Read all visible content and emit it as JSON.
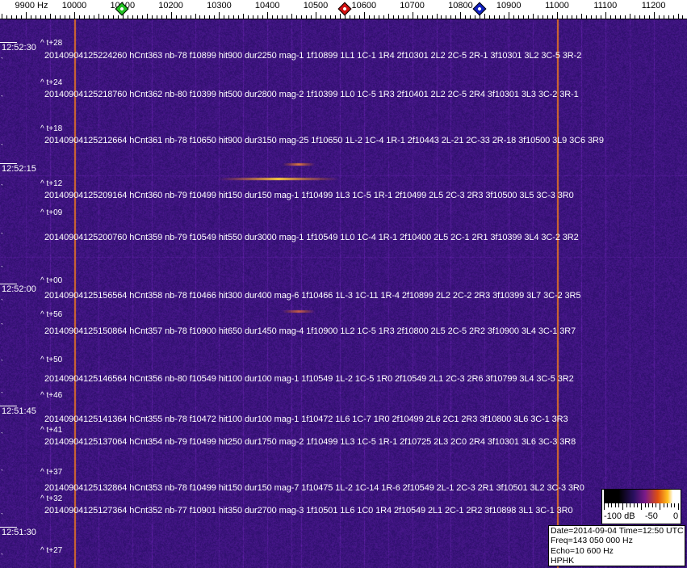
{
  "axis": {
    "unit_label": "9900 Hz",
    "ticks": [
      "10000",
      "10100",
      "10200",
      "10300",
      "10400",
      "10500",
      "10600",
      "10700",
      "10800",
      "10900",
      "11000",
      "11100",
      "11200"
    ],
    "markers": [
      {
        "name": "green-marker",
        "freq_hz": 10098,
        "color": "#20c020"
      },
      {
        "name": "red-marker",
        "freq_hz": 10560,
        "color": "#d01010"
      },
      {
        "name": "blue-marker",
        "freq_hz": 10840,
        "color": "#1020c0"
      }
    ]
  },
  "time_labels": [
    "12:52:30",
    "12:52:15",
    "12:52:00",
    "12:51:45",
    "12:51:30"
  ],
  "offset_labels": [
    "^ t+28",
    "^ t+24",
    "^ t+18",
    "^ t+12",
    "^ t+09",
    "^ t+00",
    "^ t+56",
    "^ t+50",
    "^ t+46",
    "^ t+41",
    "^ t+37",
    "^ t+32",
    "^ t+27"
  ],
  "detections": [
    "20140904125224260 hCnt363 nb-78 f10899 hit900 dur2250 mag-1 1f10899 1L1 1C-1 1R4 2f10301 2L2 2C-5 2R-1 3f10301 3L2 3C-5 3R-2",
    "20140904125218760 hCnt362 nb-80 f10399 hit500 dur2800 mag-2 1f10399 1L0 1C-5 1R3 2f10401 2L2 2C-5 2R4 3f10301 3L3 3C-2 3R-1",
    "20140904125212664 hCnt361 nb-78 f10650 hit900 dur3150 mag-25 1f10650 1L-2 1C-4 1R-1 2f10443 2L-21 2C-33 2R-18 3f10500 3L9 3C6 3R9",
    "20140904125209164 hCnt360 nb-79 f10499 hit150 dur150 mag-1 1f10499 1L3 1C-5 1R-1 2f10499 2L5 2C-3 2R3 3f10500 3L5 3C-3 3R0",
    "20140904125200760 hCnt359 nb-79 f10549 hit550 dur3000 mag-1 1f10549 1L0 1C-4 1R-1 2f10400 2L5 2C-1 2R1 3f10399 3L4 3C-2 3R2",
    "20140904125156564 hCnt358 nb-78 f10466 hit300 dur400 mag-6 1f10466 1L-3 1C-11 1R-4 2f10899 2L2 2C-2 2R3 3f10399 3L7 3C-2 3R5",
    "20140904125150864 hCnt357 nb-78 f10900 hit650 dur1450 mag-4 1f10900 1L2 1C-5 1R3 2f10800 2L5 2C-5 2R2 3f10900 3L4 3C-1 3R7",
    "20140904125146564 hCnt356 nb-80 f10549 hit100 dur100 mag-1 1f10549 1L-2 1C-5 1R0 2f10549 2L1 2C-3 2R6 3f10799 3L4 3C-5 3R2",
    "20140904125141364 hCnt355 nb-78 f10472 hit100 dur100 mag-1 1f10472 1L6 1C-7 1R0 2f10499 2L6 2C1 2R3 3f10800 3L6 3C-1 3R3",
    "20140904125137064 hCnt354 nb-79 f10499 hit250 dur1750 mag-2 1f10499 1L3 1C-5 1R-1 2f10725 2L3 2C0 2R4 3f10301 3L6 3C-3 3R8",
    "20140904125132864 hCnt353 nb-78 f10499 hit150 dur150 mag-7 1f10475 1L-2 1C-14 1R-6 2f10549 2L-1 2C-3 2R1 3f10501 3L2 3C-3 3R0",
    "20140904125127364 hCnt352 nb-77 f10901 hit350 dur2700 mag-3 1f10501 1L6 1C0 1R4 2f10549 2L1 2C-1 2R2 3f10898 3L1 3C-1 3R0"
  ],
  "colorbar": {
    "labels": [
      "-100 dB",
      "-50",
      "0"
    ]
  },
  "info": {
    "date_time": "Date=2014-09-04 Time=12:50 UTC",
    "freq": "Freq=143 050 000 Hz",
    "echo": "Echo=10 600 Hz",
    "station": "HPHK"
  },
  "colors": {
    "background": "#2a1a7a",
    "carrier": "#e07020",
    "text": "#ffffff"
  }
}
